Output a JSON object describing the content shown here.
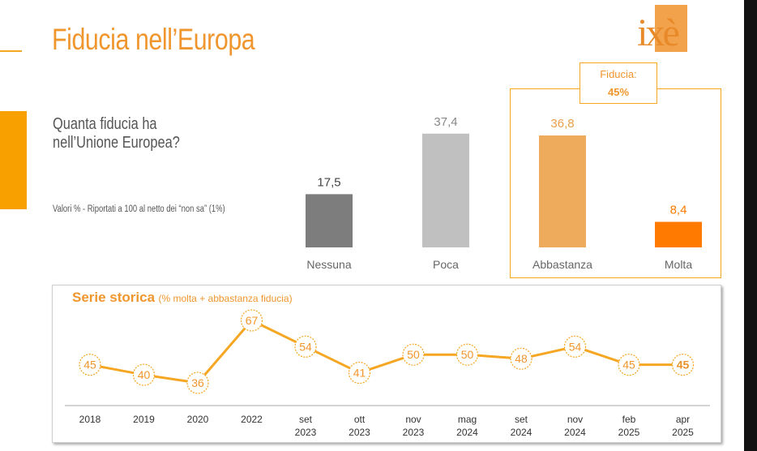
{
  "page": {
    "title": "Fiducia nell’Europa",
    "logo_text": "ixè",
    "question": "Quanta fiducia ha nell’Unione Europea?",
    "note": "Valori % - Riportati a 100 al netto dei “non sa” (1%)",
    "fiducia_label": "Fiducia:",
    "fiducia_value": "45%",
    "colors": {
      "accent": "#f5a623",
      "title": "#f0962e",
      "molta": "#ff7a00"
    }
  },
  "chart_data": [
    {
      "type": "bar",
      "categories": [
        "Nessuna",
        "Poca",
        "Abbastanza",
        "Molta"
      ],
      "values": [
        17.5,
        37.4,
        36.8,
        8.4
      ],
      "value_labels": [
        "17,5",
        "37,4",
        "36,8",
        "8,4"
      ],
      "colors": [
        "#7d7d7d",
        "#c0c0c0",
        "#efab5c",
        "#ff7a00"
      ],
      "label_colors": [
        "#444444",
        "#888888",
        "#e9a04a",
        "#ff7a00"
      ],
      "title": "",
      "xlabel": "",
      "ylabel": "",
      "ylim": [
        0,
        40
      ],
      "grid": false,
      "legend": "none"
    },
    {
      "type": "line",
      "title": "Serie storica",
      "subtitle": "(% molta + abbastanza fiducia)",
      "x": [
        "2018",
        "2019",
        "2020",
        "2022",
        "set 2023",
        "ott 2023",
        "nov 2023",
        "mag 2024",
        "set 2024",
        "nov 2024",
        "feb 2025",
        "apr 2025"
      ],
      "x_lines": [
        [
          "2018"
        ],
        [
          "2019"
        ],
        [
          "2020"
        ],
        [
          "2022"
        ],
        [
          "set",
          "2023"
        ],
        [
          "ott",
          "2023"
        ],
        [
          "nov",
          "2023"
        ],
        [
          "mag",
          "2024"
        ],
        [
          "set",
          "2024"
        ],
        [
          "nov",
          "2024"
        ],
        [
          "feb",
          "2025"
        ],
        [
          "apr",
          "2025"
        ]
      ],
      "values": [
        45,
        40,
        36,
        67,
        54,
        41,
        50,
        50,
        48,
        54,
        45,
        45
      ],
      "highlight_last": true,
      "ylim": [
        30,
        70
      ],
      "color": "#f5a623",
      "grid": false,
      "legend": "none"
    }
  ]
}
